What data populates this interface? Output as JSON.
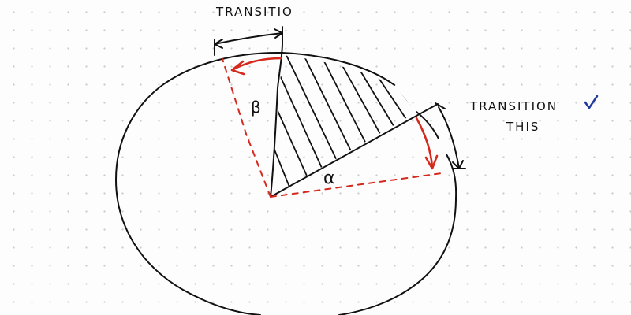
{
  "labels": {
    "top_annotation": "TRANSITIO",
    "right_annotation_line1": "TRANSITION",
    "right_annotation_line2": "THIS",
    "angle_beta": "β",
    "angle_alpha": "α"
  },
  "colors": {
    "ink": "#111111",
    "red": "#d42a1e",
    "blue_mark": "#1f3a9c",
    "dots": "#c9c9c9",
    "paper": "#fdfdfd"
  }
}
